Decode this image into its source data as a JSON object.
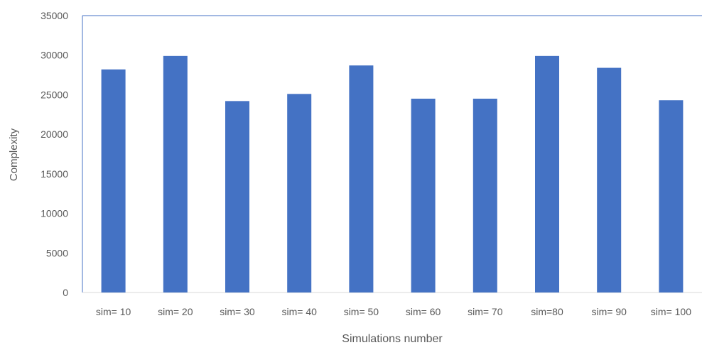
{
  "chart_data": {
    "type": "bar",
    "title": "",
    "xlabel": "Simulations number",
    "ylabel": "Complexity",
    "categories": [
      "sim= 10",
      "sim= 20",
      "sim= 30",
      "sim= 40",
      "sim= 50",
      "sim= 60",
      "sim= 70",
      "sim=80",
      "sim= 90",
      "sim= 100"
    ],
    "values": [
      28200,
      29900,
      24200,
      25100,
      28700,
      24500,
      24500,
      29900,
      28400,
      24300
    ],
    "ylim": [
      0,
      35000
    ],
    "yticks": [
      0,
      5000,
      10000,
      15000,
      20000,
      25000,
      30000,
      35000
    ],
    "grid": false,
    "legend": "none",
    "colors": {
      "bar": "#4472C4",
      "axis": "#4472C4",
      "text": "#595959"
    }
  }
}
